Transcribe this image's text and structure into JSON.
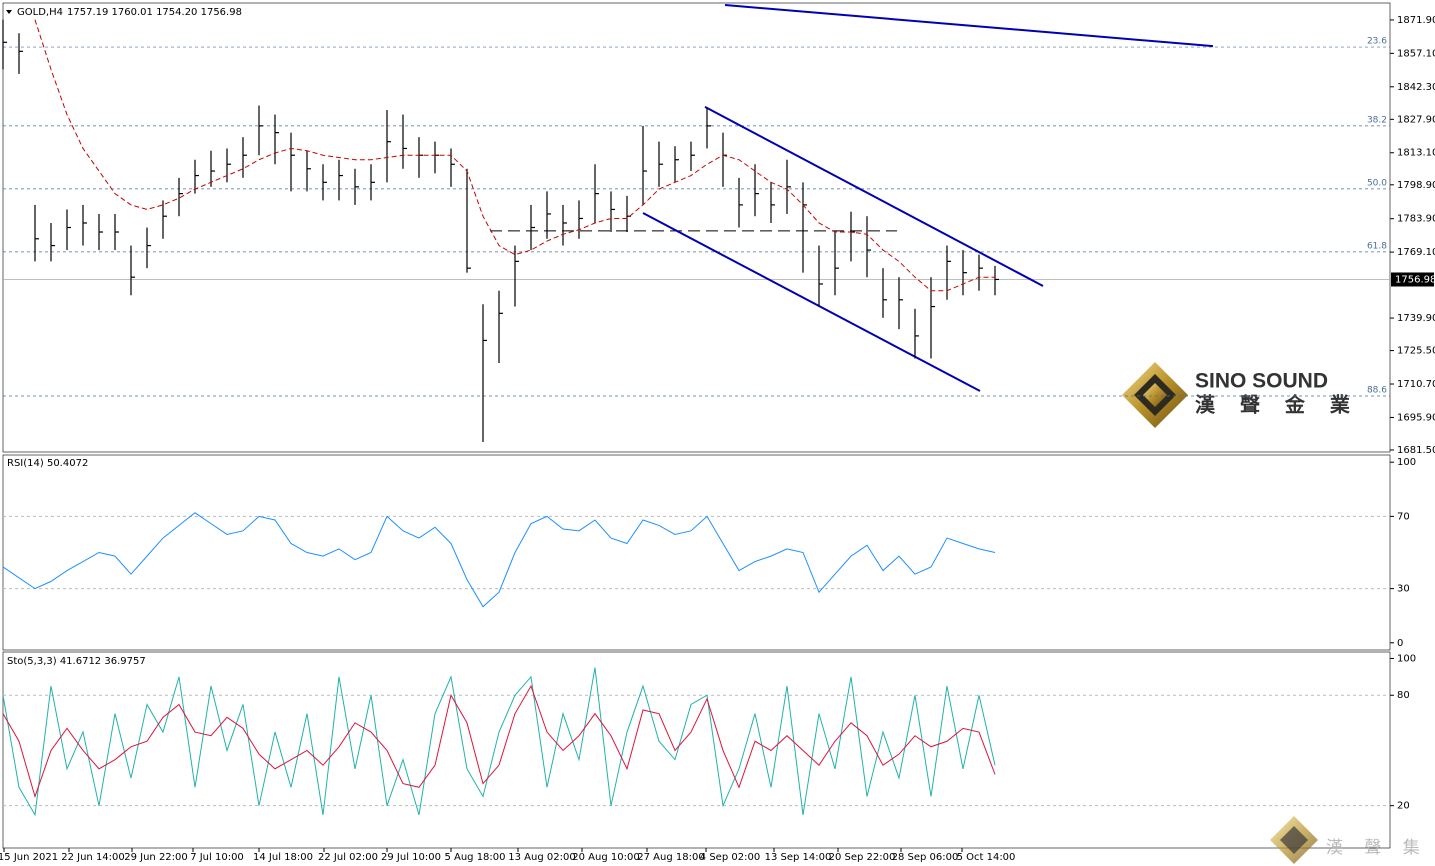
{
  "header": {
    "symbol": "GOLD,H4",
    "ohlc": "1757.19 1760.01 1754.20 1756.98"
  },
  "price_panel": {
    "ylim": [
      1680.6,
      1879.4
    ],
    "yticks": [
      {
        "value": 1871.9,
        "label": "1871.90"
      },
      {
        "value": 1857.1,
        "label": "1857.10"
      },
      {
        "value": 1842.3,
        "label": "1842.30"
      },
      {
        "value": 1827.9,
        "label": "1827.90"
      },
      {
        "value": 1813.1,
        "label": "1813.10"
      },
      {
        "value": 1798.9,
        "label": "1798.90"
      },
      {
        "value": 1783.9,
        "label": "1783.90"
      },
      {
        "value": 1769.1,
        "label": "1769.10"
      },
      {
        "value": 1739.9,
        "label": "1739.90"
      },
      {
        "value": 1725.5,
        "label": "1725.50"
      },
      {
        "value": 1710.7,
        "label": "1710.70"
      },
      {
        "value": 1695.9,
        "label": "1695.90"
      },
      {
        "value": 1681.5,
        "label": "1681.50"
      }
    ],
    "high": [
      1872,
      1866,
      1790,
      1782,
      1788,
      1790,
      1786,
      1786,
      1772,
      1780,
      1792,
      1802,
      1810,
      1814,
      1815,
      1820,
      1834,
      1830,
      1822,
      1814,
      1808,
      1810,
      1806,
      1808,
      1832,
      1830,
      1820,
      1818,
      1815,
      1806,
      1746,
      1752,
      1772,
      1790,
      1796,
      1790,
      1792,
      1808,
      1796,
      1794,
      1825,
      1818,
      1816,
      1818,
      1833,
      1822,
      1802,
      1808,
      1800,
      1810,
      1800,
      1772,
      1778,
      1787,
      1785,
      1762,
      1758,
      1744,
      1758,
      1772,
      1770,
      1768,
      1763
    ],
    "low": [
      1850,
      1848,
      1765,
      1765,
      1770,
      1772,
      1770,
      1770,
      1750,
      1762,
      1775,
      1785,
      1795,
      1798,
      1800,
      1802,
      1812,
      1808,
      1796,
      1796,
      1792,
      1792,
      1790,
      1792,
      1800,
      1806,
      1802,
      1804,
      1798,
      1760,
      1685,
      1720,
      1745,
      1770,
      1775,
      1772,
      1775,
      1782,
      1778,
      1778,
      1790,
      1798,
      1800,
      1805,
      1815,
      1798,
      1780,
      1785,
      1782,
      1786,
      1760,
      1745,
      1750,
      1765,
      1758,
      1740,
      1735,
      1722,
      1722,
      1748,
      1750,
      1752,
      1750
    ],
    "close": [
      1862,
      1858,
      1775,
      1772,
      1780,
      1782,
      1778,
      1778,
      1758,
      1772,
      1785,
      1795,
      1803,
      1805,
      1808,
      1812,
      1825,
      1822,
      1812,
      1806,
      1800,
      1803,
      1798,
      1800,
      1818,
      1815,
      1812,
      1812,
      1808,
      1762,
      1730,
      1742,
      1765,
      1780,
      1786,
      1782,
      1784,
      1795,
      1788,
      1785,
      1805,
      1808,
      1810,
      1812,
      1825,
      1812,
      1790,
      1795,
      1790,
      1798,
      1790,
      1755,
      1762,
      1778,
      1770,
      1748,
      1748,
      1732,
      1745,
      1765,
      1760,
      1762,
      1757
    ],
    "ma": [
      null,
      null,
      1872,
      1850,
      1830,
      1815,
      1805,
      1795,
      1790,
      1788,
      1790,
      1793,
      1797,
      1800,
      1803,
      1806,
      1810,
      1813,
      1815,
      1814,
      1812,
      1811,
      1810,
      1810,
      1811,
      1812,
      1812,
      1812,
      1812,
      1805,
      1785,
      1772,
      1768,
      1770,
      1774,
      1777,
      1779,
      1782,
      1784,
      1784,
      1790,
      1797,
      1800,
      1803,
      1808,
      1812,
      1810,
      1805,
      1800,
      1797,
      1790,
      1782,
      1778,
      1778,
      1777,
      1770,
      1765,
      1758,
      1752,
      1752,
      1755,
      1758,
      1758
    ],
    "fib_levels": [
      {
        "label": "23.6",
        "value": 1859.9
      },
      {
        "label": "38.2",
        "value": 1825
      },
      {
        "label": "50.0",
        "value": 1797.1
      },
      {
        "label": "61.8",
        "value": 1769.2
      },
      {
        "label": "88.6",
        "value": 1705.4
      }
    ],
    "current": {
      "value": 1756.98,
      "label": "1756.98"
    },
    "support_level": 1778.5,
    "trendlines": [
      [
        1878.5,
        1860.3
      ],
      [
        1833.4,
        1754.1
      ],
      [
        1786.4,
        1707.6
      ]
    ]
  },
  "rsi_panel": {
    "label": "RSI(14) 50.4072",
    "ylim": [
      -4,
      104
    ],
    "yticks": [
      100,
      70,
      30,
      0
    ],
    "values": [
      42,
      36,
      30,
      34,
      40,
      45,
      50,
      48,
      38,
      48,
      58,
      65,
      72,
      66,
      60,
      62,
      70,
      68,
      55,
      50,
      48,
      52,
      46,
      50,
      70,
      62,
      58,
      64,
      55,
      35,
      20,
      28,
      50,
      66,
      70,
      63,
      62,
      68,
      58,
      55,
      68,
      65,
      60,
      62,
      70,
      55,
      40,
      45,
      48,
      52,
      50,
      28,
      38,
      48,
      54,
      40,
      48,
      38,
      42,
      58,
      55,
      52,
      50
    ]
  },
  "sto_panel": {
    "label": "Sto(5,3,3) 41.6712 36.9757",
    "ylim": [
      -3,
      103.5
    ],
    "yticks": [
      100,
      80,
      20
    ],
    "k": [
      80,
      30,
      15,
      85,
      40,
      60,
      20,
      70,
      35,
      75,
      60,
      90,
      30,
      85,
      50,
      75,
      20,
      60,
      30,
      70,
      15,
      90,
      40,
      80,
      20,
      45,
      15,
      70,
      90,
      40,
      25,
      60,
      80,
      90,
      30,
      70,
      45,
      95,
      20,
      60,
      85,
      55,
      45,
      75,
      80,
      20,
      40,
      70,
      30,
      85,
      15,
      70,
      40,
      90,
      25,
      60,
      35,
      80,
      25,
      85,
      40,
      80,
      42
    ],
    "d": [
      70,
      55,
      25,
      50,
      62,
      50,
      40,
      45,
      52,
      55,
      68,
      75,
      60,
      58,
      68,
      62,
      48,
      40,
      45,
      50,
      42,
      52,
      65,
      60,
      50,
      32,
      30,
      42,
      80,
      65,
      32,
      42,
      70,
      85,
      60,
      50,
      58,
      70,
      58,
      40,
      72,
      70,
      50,
      60,
      78,
      50,
      30,
      55,
      50,
      58,
      50,
      42,
      55,
      65,
      58,
      42,
      48,
      58,
      52,
      55,
      62,
      60,
      37
    ]
  },
  "time_labels": [
    "15 Jun 2021",
    "22 Jun 14:00",
    "29 Jun 22:00",
    "7 Jul 10:00",
    "14 Jul 18:00",
    "22 Jul 02:00",
    "29 Jul 10:00",
    "5 Aug 18:00",
    "13 Aug 02:00",
    "20 Aug 10:00",
    "27 Aug 18:00",
    "4 Sep 02:00",
    "13 Sep 14:00",
    "20 Sep 22:00",
    "28 Sep 06:00",
    "5 Oct 14:00"
  ],
  "logo": {
    "name": "SINO SOUND",
    "chinese": "漢 聲 金 業"
  },
  "footer_logo": "漢 聲 集 團"
}
